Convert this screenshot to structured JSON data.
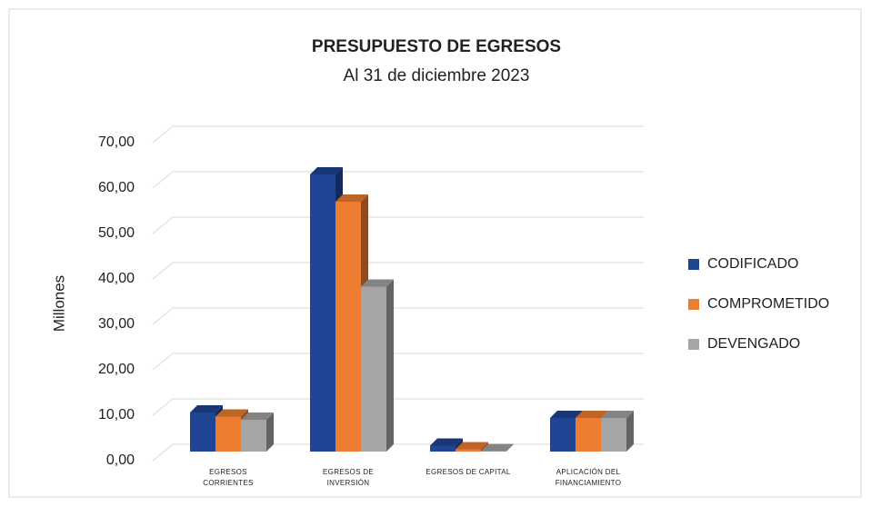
{
  "chart_data": {
    "type": "bar3d",
    "title": "PRESUPUESTO DE EGRESOS",
    "subtitle": "Al 31 de diciembre 2023",
    "y_axis_label": "Millones",
    "categories": [
      "EGRESOS CORRIENTES",
      "EGRESOS DE INVERSIÓN",
      "EGRESOS DE CAPITAL",
      "APLICACIÓN DEL FINANCIAMIENTO"
    ],
    "series": [
      {
        "name": "CODIFICADO",
        "color": "#1f4594",
        "values": [
          8.6,
          61.0,
          1.3,
          7.4
        ]
      },
      {
        "name": "COMPROMETIDO",
        "color": "#ed7d31",
        "values": [
          7.7,
          55.0,
          0.5,
          7.4
        ]
      },
      {
        "name": "DEVENGADO",
        "color": "#a5a5a5",
        "values": [
          7.0,
          36.3,
          0.1,
          7.4
        ]
      }
    ],
    "ylim": [
      0,
      70
    ],
    "yticks": [
      {
        "value": 0,
        "label": "0,00"
      },
      {
        "value": 10,
        "label": "10,00"
      },
      {
        "value": 20,
        "label": "20,00"
      },
      {
        "value": 30,
        "label": "30,00"
      },
      {
        "value": 40,
        "label": "40,00"
      },
      {
        "value": 50,
        "label": "50,00"
      },
      {
        "value": 60,
        "label": "60,00"
      },
      {
        "value": 70,
        "label": "70,00"
      }
    ],
    "grid": true,
    "legend": "right"
  }
}
